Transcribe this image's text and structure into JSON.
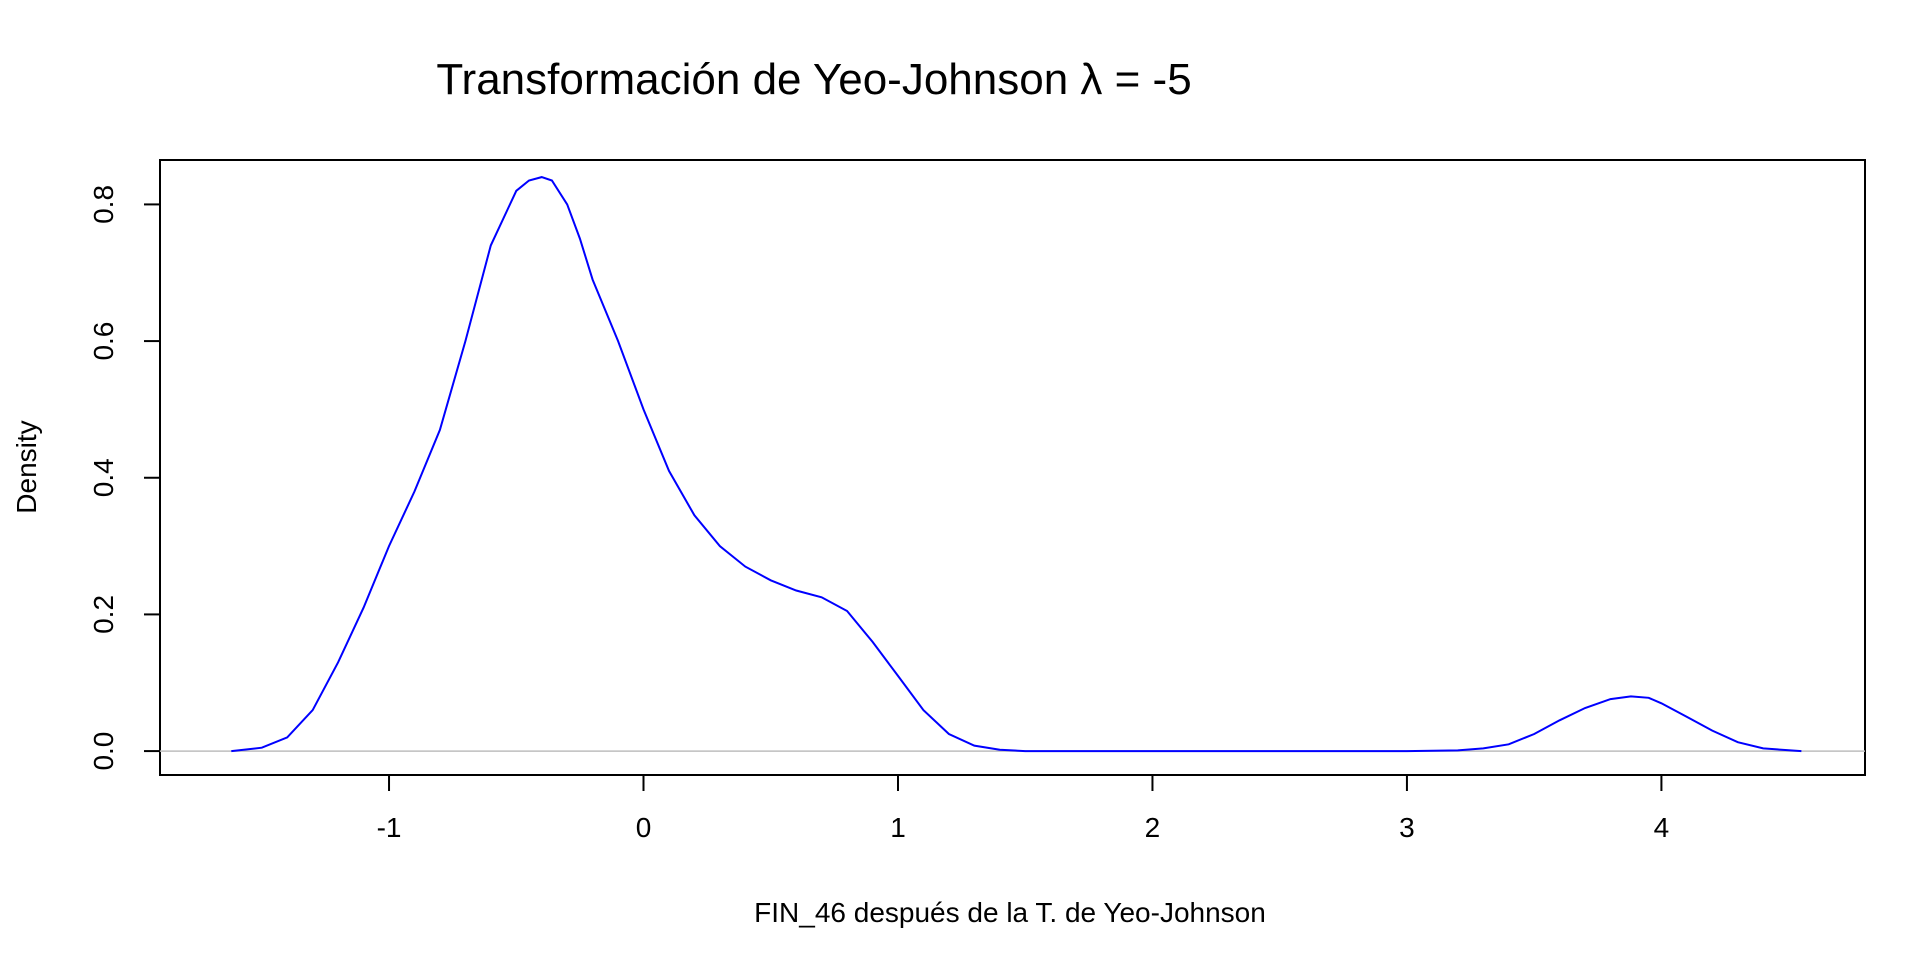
{
  "chart_data": {
    "type": "line",
    "title": "Transformación de Yeo-Johnson λ = -5",
    "xlabel": "FIN_46 después de la T. de Yeo-Johnson",
    "ylabel": "Density",
    "xlim": [
      -1.9,
      4.8
    ],
    "ylim": [
      -0.035,
      0.865
    ],
    "xticks": [
      -1,
      0,
      1,
      2,
      3,
      4
    ],
    "xtick_labels": [
      "-1",
      "0",
      "1",
      "2",
      "3",
      "4"
    ],
    "yticks": [
      0.0,
      0.2,
      0.4,
      0.6,
      0.8
    ],
    "ytick_labels": [
      "0.0",
      "0.2",
      "0.4",
      "0.6",
      "0.8"
    ],
    "baseline": 0,
    "colors": {
      "series": "#0000ff",
      "baseline": "#bebebe",
      "axis": "#000000"
    },
    "series": [
      {
        "x": [
          -1.62,
          -1.5,
          -1.4,
          -1.3,
          -1.2,
          -1.1,
          -1.0,
          -0.9,
          -0.8,
          -0.7,
          -0.6,
          -0.5,
          -0.45,
          -0.4,
          -0.36,
          -0.3,
          -0.25,
          -0.2,
          -0.1,
          0.0,
          0.1,
          0.2,
          0.3,
          0.4,
          0.5,
          0.6,
          0.7,
          0.8,
          0.9,
          1.0,
          1.1,
          1.2,
          1.3,
          1.4,
          1.5,
          1.6,
          1.8,
          2.0,
          2.5,
          3.0,
          3.2,
          3.3,
          3.4,
          3.5,
          3.6,
          3.7,
          3.8,
          3.88,
          3.95,
          4.0,
          4.1,
          4.2,
          4.3,
          4.4,
          4.55
        ],
        "y": [
          0.0,
          0.005,
          0.02,
          0.06,
          0.13,
          0.21,
          0.3,
          0.38,
          0.47,
          0.6,
          0.74,
          0.82,
          0.835,
          0.84,
          0.835,
          0.8,
          0.75,
          0.69,
          0.6,
          0.5,
          0.41,
          0.345,
          0.3,
          0.27,
          0.25,
          0.235,
          0.225,
          0.205,
          0.16,
          0.11,
          0.06,
          0.025,
          0.008,
          0.002,
          0.0,
          0.0,
          0.0,
          0.0,
          0.0,
          0.0,
          0.001,
          0.004,
          0.01,
          0.025,
          0.045,
          0.063,
          0.076,
          0.08,
          0.078,
          0.07,
          0.05,
          0.03,
          0.013,
          0.004,
          0.0
        ]
      }
    ]
  }
}
